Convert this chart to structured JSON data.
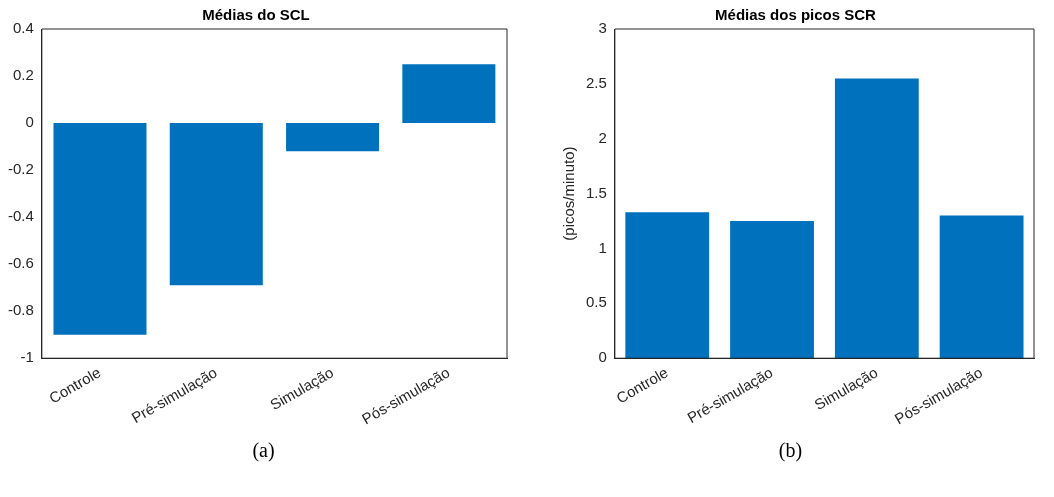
{
  "chart_data": [
    {
      "type": "bar",
      "title": "Médias do SCL",
      "categories": [
        "Controle",
        "Pré-simulação",
        "Simulação",
        "Pós-simulação"
      ],
      "values": [
        -0.9,
        -0.69,
        -0.12,
        0.25
      ],
      "color": "#0072bd",
      "ylim": [
        -1,
        0.4
      ],
      "yticks": [
        -1,
        -0.8,
        -0.6,
        -0.4,
        -0.2,
        0,
        0.2,
        0.4
      ],
      "grid": false,
      "annotations": [
        "(a)"
      ]
    },
    {
      "type": "bar",
      "title": "Médias dos picos SCR",
      "ylabel": "(picos/minuto)",
      "categories": [
        "Controle",
        "Pré-simulação",
        "Simulação",
        "Pós-simulação"
      ],
      "values": [
        1.33,
        1.25,
        2.55,
        1.3
      ],
      "color": "#0072bd",
      "ylim": [
        0,
        3
      ],
      "yticks": [
        0,
        0.5,
        1,
        1.5,
        2,
        2.5,
        3
      ],
      "grid": false,
      "annotations": [
        "(b)"
      ]
    }
  ]
}
